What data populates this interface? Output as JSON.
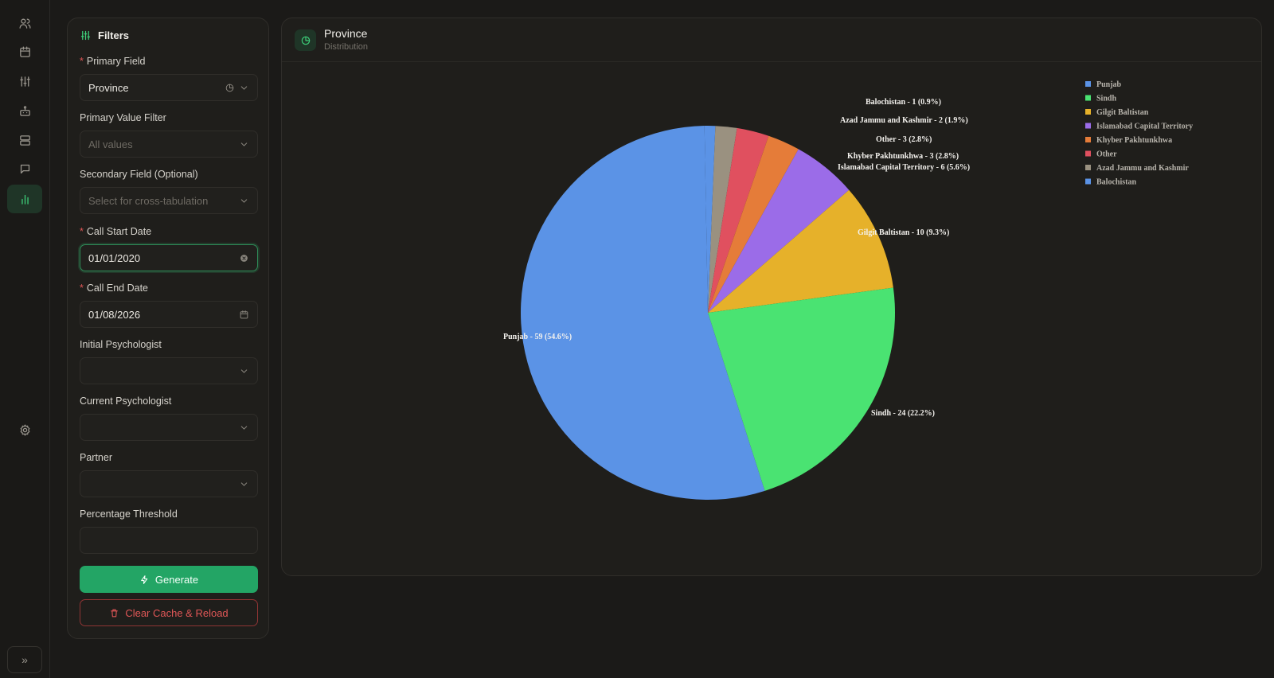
{
  "nav": {
    "items": [
      {
        "name": "users-icon",
        "active": false
      },
      {
        "name": "calendar-icon",
        "active": false
      },
      {
        "name": "sliders-icon",
        "active": false
      },
      {
        "name": "robot-icon",
        "active": false
      },
      {
        "name": "server-icon",
        "active": false
      },
      {
        "name": "chat-icon",
        "active": false
      },
      {
        "name": "bar-chart-icon",
        "active": true
      }
    ],
    "settings_icon": "gear-icon",
    "expand_icon": "chevrons-right-icon",
    "expand_glyph": "»"
  },
  "filters": {
    "title": "Filters",
    "primary_field": {
      "label": "Primary Field",
      "value": "Province",
      "required": true
    },
    "primary_value_filter": {
      "label": "Primary Value Filter",
      "placeholder": "All values"
    },
    "secondary_field": {
      "label": "Secondary Field (Optional)",
      "placeholder": "Select for cross-tabulation"
    },
    "call_start_date": {
      "label": "Call Start Date",
      "value": "01/01/2020",
      "required": true
    },
    "call_end_date": {
      "label": "Call End Date",
      "value": "01/08/2026",
      "required": true
    },
    "initial_psychologist": {
      "label": "Initial Psychologist",
      "value": ""
    },
    "current_psychologist": {
      "label": "Current Psychologist",
      "value": ""
    },
    "partner": {
      "label": "Partner",
      "value": ""
    },
    "percentage_threshold": {
      "label": "Percentage Threshold",
      "value": ""
    },
    "generate_label": "Generate",
    "clear_label": "Clear Cache & Reload",
    "required_mark": "*"
  },
  "card": {
    "title": "Province",
    "subtitle": "Distribution"
  },
  "chart_data": {
    "type": "pie",
    "title": "",
    "categories": [
      "Punjab",
      "Sindh",
      "Gilgit Baltistan",
      "Islamabad Capital Territory",
      "Khyber Pakhtunkhwa",
      "Other",
      "Azad Jammu and Kashmir",
      "Balochistan"
    ],
    "values": [
      59,
      24,
      10,
      6,
      3,
      3,
      2,
      1
    ],
    "labels": [
      "Punjab - 59 (54.6%)",
      "Sindh - 24 (22.2%)",
      "Gilgit Baltistan - 10 (9.3%)",
      "Islamabad Capital Territory - 6 (5.6%)",
      "Khyber Pakhtunkhwa - 3 (2.8%)",
      "Other - 3 (2.8%)",
      "Azad Jammu and Kashmir - 2 (1.9%)",
      "Balochistan - 1 (0.9%)"
    ],
    "colors": [
      "#5b93e6",
      "#4ae372",
      "#e6b12a",
      "#9b6ce8",
      "#e57c39",
      "#e0505f",
      "#9a9180",
      "#5b93e6"
    ],
    "legend_placement": "top-right",
    "start_angle": "top, counter-clockwise order reversed (Punjab clockwise from bottom-left)"
  }
}
